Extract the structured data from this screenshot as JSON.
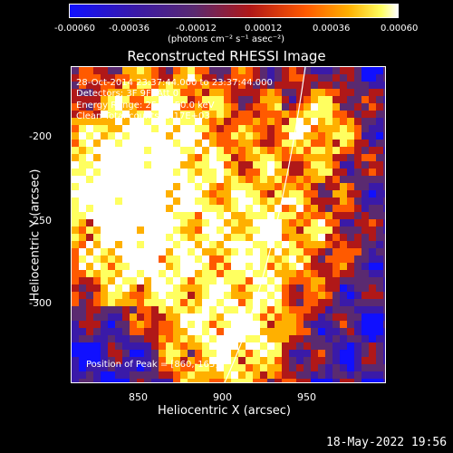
{
  "colorbar": {
    "ticks": [
      "-0.00060",
      "-0.00036",
      "-0.00012",
      "0.00012",
      "0.00036",
      "0.00060"
    ],
    "unit_label": "(photons cm⁻² s⁻¹ asec⁻²)"
  },
  "image": {
    "title": "Reconstructed RHESSI Image",
    "info_lines": [
      "28-Oct-2014 23:37:44.000 to 23:37:44.000",
      "Detectors: 3F 9F, Att 0",
      "Energy Range: 25.0 - 50.0 keV",
      "Clean     Total counts: 3.17E+03"
    ],
    "peak_label": "Position of Peak = [860,-163]",
    "colormap": [
      "#1010ff",
      "#3a1aa8",
      "#5a2a70",
      "#b01818",
      "#ff5a00",
      "#ffb000",
      "#ffff60",
      "#ffffff"
    ]
  },
  "axes": {
    "xlabel": "Heliocentric X (arcsec)",
    "ylabel": "Heliocentric Y (arcsec)",
    "xticks": [
      "850",
      "900",
      "950"
    ],
    "yticks": [
      "-200",
      "-250",
      "-300"
    ]
  },
  "footer": {
    "date": "18-May-2022 19:56"
  }
}
